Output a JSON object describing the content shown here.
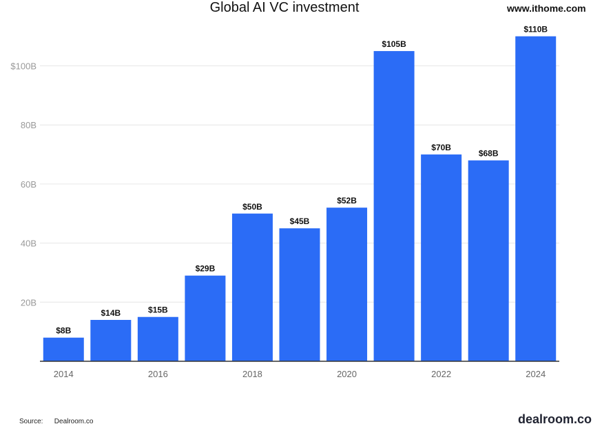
{
  "header": {
    "title": "Global AI VC investment",
    "watermark": "www.ithome.com"
  },
  "footer": {
    "source_label": "Source:",
    "source_value": "Dealroom.co",
    "brand": "dealroom.co"
  },
  "colors": {
    "bar": "#2b6cf6",
    "grid": "#e6e6e6",
    "axis": "#333333",
    "tick_text": "#999999"
  },
  "chart_data": {
    "type": "bar",
    "title": "Global AI VC investment",
    "categories": [
      "2014",
      "2015",
      "2016",
      "2017",
      "2018",
      "2019",
      "2020",
      "2021",
      "2022",
      "2023",
      "2024"
    ],
    "x_tick_labels": [
      "2014",
      "",
      "2016",
      "",
      "2018",
      "",
      "2020",
      "",
      "2022",
      "",
      "2024"
    ],
    "values": [
      8,
      14,
      15,
      29,
      50,
      45,
      52,
      105,
      70,
      68,
      110
    ],
    "data_labels": [
      "$8B",
      "$14B",
      "$15B",
      "$29B",
      "$50B",
      "$45B",
      "$52B",
      "$105B",
      "$70B",
      "$68B",
      "$110B"
    ],
    "y_ticks": [
      20,
      40,
      60,
      80,
      100
    ],
    "y_tick_labels": [
      "20B",
      "40B",
      "60B",
      "80B",
      "$100B"
    ],
    "ylim": [
      0,
      110
    ],
    "grid": true,
    "legend": "none",
    "xlabel": "",
    "ylabel": ""
  }
}
